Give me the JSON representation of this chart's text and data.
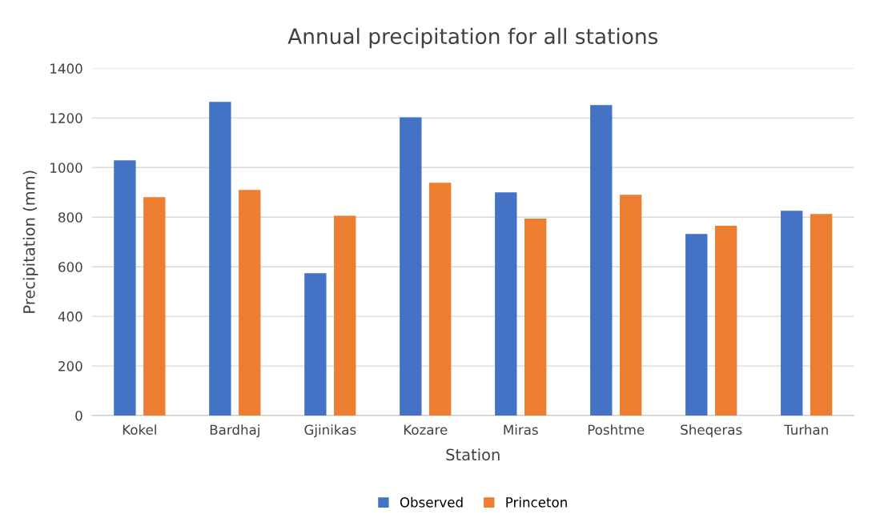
{
  "chart_data": {
    "type": "bar",
    "title": "Annual precipitation for all stations",
    "xlabel": "Station",
    "ylabel": "Precipitation (mm)",
    "categories": [
      "Kokel",
      "Bardhaj",
      "Gjinikas",
      "Kozare",
      "Miras",
      "Poshtme",
      "Sheqeras",
      "Turhan"
    ],
    "series": [
      {
        "name": "Observed",
        "color": "#4472c4",
        "values": [
          1029,
          1265,
          574,
          1203,
          900,
          1252,
          732,
          826
        ]
      },
      {
        "name": "Princeton",
        "color": "#ed7d31",
        "values": [
          881,
          910,
          806,
          939,
          794,
          890,
          765,
          813
        ]
      }
    ],
    "ylim": [
      0,
      1400
    ],
    "yticks": [
      0,
      200,
      400,
      600,
      800,
      1000,
      1200,
      1400
    ],
    "grid": "y",
    "legend": "bottom"
  }
}
